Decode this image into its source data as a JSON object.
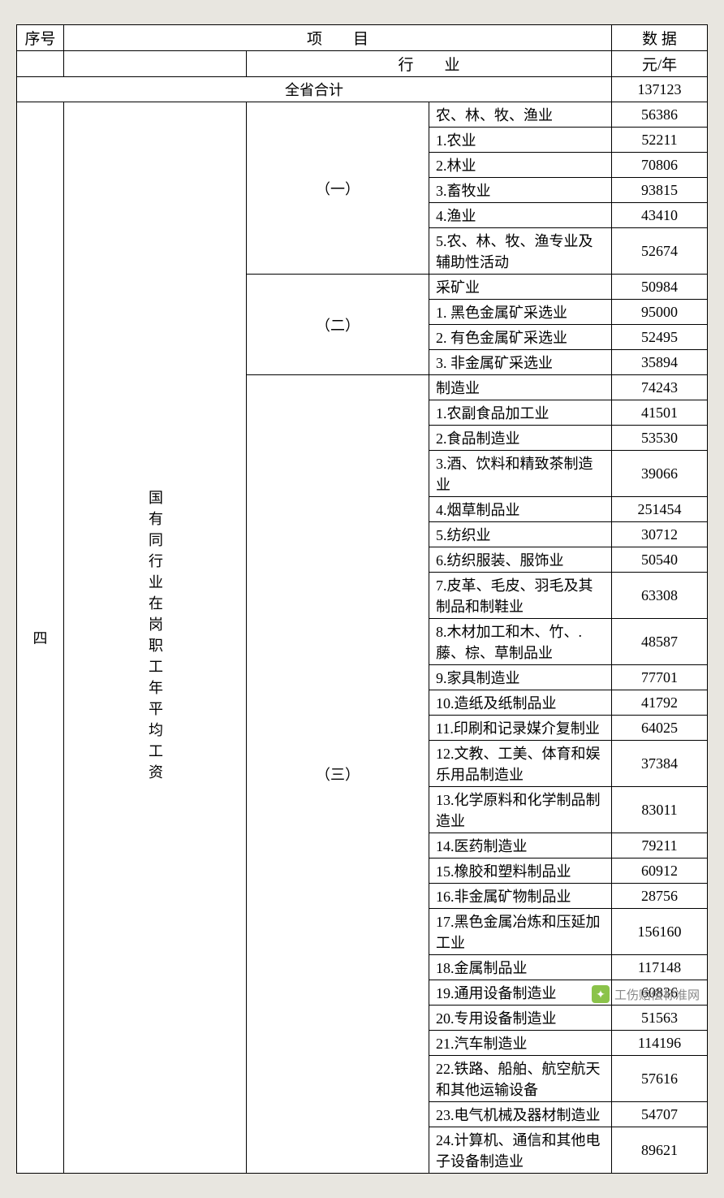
{
  "header": {
    "serial_label": "序号",
    "item_label": "项　　目",
    "data_label": "数 据",
    "industry_label": "行　　业",
    "unit_label": "元/年",
    "total_label": "全省合计",
    "total_value": "137123"
  },
  "main": {
    "serial": "四",
    "desc": "国有同行业在岗职工年平均工资"
  },
  "g1": {
    "label": "（一）",
    "r0": {
      "item": "农、林、牧、渔业",
      "val": "56386"
    },
    "r1": {
      "item": "1.农业",
      "val": "52211"
    },
    "r2": {
      "item": "2.林业",
      "val": "70806"
    },
    "r3": {
      "item": "3.畜牧业",
      "val": "93815"
    },
    "r4": {
      "item": "4.渔业",
      "val": "43410"
    },
    "r5": {
      "item": "5.农、林、牧、渔专业及辅助性活动",
      "val": "52674"
    }
  },
  "g2": {
    "label": "（二）",
    "r0": {
      "item": "采矿业",
      "val": "50984"
    },
    "r1": {
      "item": "1. 黑色金属矿采选业",
      "val": "95000"
    },
    "r2": {
      "item": "2. 有色金属矿采选业",
      "val": "52495"
    },
    "r3": {
      "item": "3. 非金属矿采选业",
      "val": "35894"
    }
  },
  "g3": {
    "label": "（三）",
    "r0": {
      "item": "制造业",
      "val": "74243"
    },
    "r1": {
      "item": "1.农副食品加工业",
      "val": "41501"
    },
    "r2": {
      "item": "2.食品制造业",
      "val": "53530"
    },
    "r3": {
      "item": "3.酒、饮料和精致茶制造业",
      "val": "39066"
    },
    "r4": {
      "item": "4.烟草制品业",
      "val": "251454"
    },
    "r5": {
      "item": "5.纺织业",
      "val": "30712"
    },
    "r6": {
      "item": "6.纺织服装、服饰业",
      "val": "50540"
    },
    "r7": {
      "item": "7.皮革、毛皮、羽毛及其制品和制鞋业",
      "val": "63308"
    },
    "r8": {
      "item": "8.木材加工和木、竹、.藤、棕、草制品业",
      "val": "48587"
    },
    "r9": {
      "item": "9.家具制造业",
      "val": "77701"
    },
    "r10": {
      "item": "10.造纸及纸制品业",
      "val": "41792"
    },
    "r11": {
      "item": "11.印刷和记录媒介复制业",
      "val": "64025"
    },
    "r12": {
      "item": "12.文教、工美、体育和娱乐用品制造业",
      "val": "37384"
    },
    "r13": {
      "item": "13.化学原料和化学制品制造业",
      "val": "83011"
    },
    "r14": {
      "item": "14.医药制造业",
      "val": "79211"
    },
    "r15": {
      "item": "15.橡胶和塑料制品业",
      "val": "60912"
    },
    "r16": {
      "item": "16.非金属矿物制品业",
      "val": "28756"
    },
    "r17": {
      "item": "17.黑色金属冶炼和压延加工业",
      "val": "156160"
    },
    "r18": {
      "item": "18.金属制品业",
      "val": "117148"
    },
    "r19": {
      "item": "19.通用设备制造业",
      "val": "60836"
    },
    "r20": {
      "item": "20.专用设备制造业",
      "val": "51563"
    },
    "r21": {
      "item": "21.汽车制造业",
      "val": "114196"
    },
    "r22": {
      "item": "22.铁路、船舶、航空航天和其他运输设备",
      "val": "57616"
    },
    "r23": {
      "item": "23.电气机械及器材制造业",
      "val": "54707"
    },
    "r24": {
      "item": "24.计算机、通信和其他电子设备制造业",
      "val": "89621"
    }
  },
  "watermark": "工伤赔偿标准网",
  "style": {
    "border_color": "#000000",
    "background": "#e8e6e0",
    "table_bg": "#ffffff",
    "font_size": 18
  }
}
